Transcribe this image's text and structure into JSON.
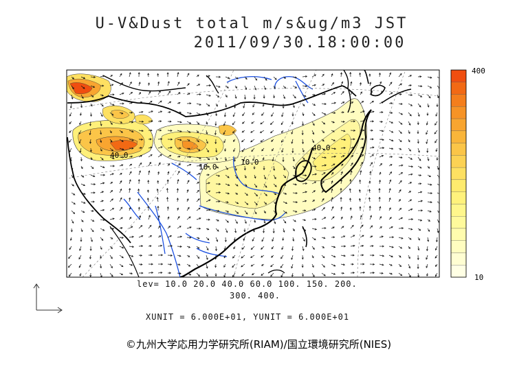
{
  "title": {
    "line1": "U-V&Dust total m/s&ug/m3 JST",
    "line2": "2011/09/30.18:00:00"
  },
  "colorbar": {
    "max_label": "400",
    "min_label": "10",
    "colors": [
      "#f04e10",
      "#f26914",
      "#f47e1c",
      "#f69326",
      "#f8a530",
      "#f9b53a",
      "#fbc548",
      "#fcd254",
      "#fde062",
      "#feeb6e",
      "#fff27c",
      "#fff78c",
      "#fffa9c",
      "#fffcae",
      "#fffdc0",
      "#fffed2",
      "#ffffe4"
    ]
  },
  "contour_labels": [
    "40.0",
    "10.0",
    "10.0",
    "40.0"
  ],
  "levels": {
    "line1": "lev= 10.0 20.0 40.0 60.0 100. 150. 200.",
    "line2": "300. 400."
  },
  "units_line": "XUNIT = 6.000E+01, YUNIT = 6.000E+01",
  "credit": "©九州大学応用力学研究所(RIAM)/国立環境研究所(NIES)"
}
